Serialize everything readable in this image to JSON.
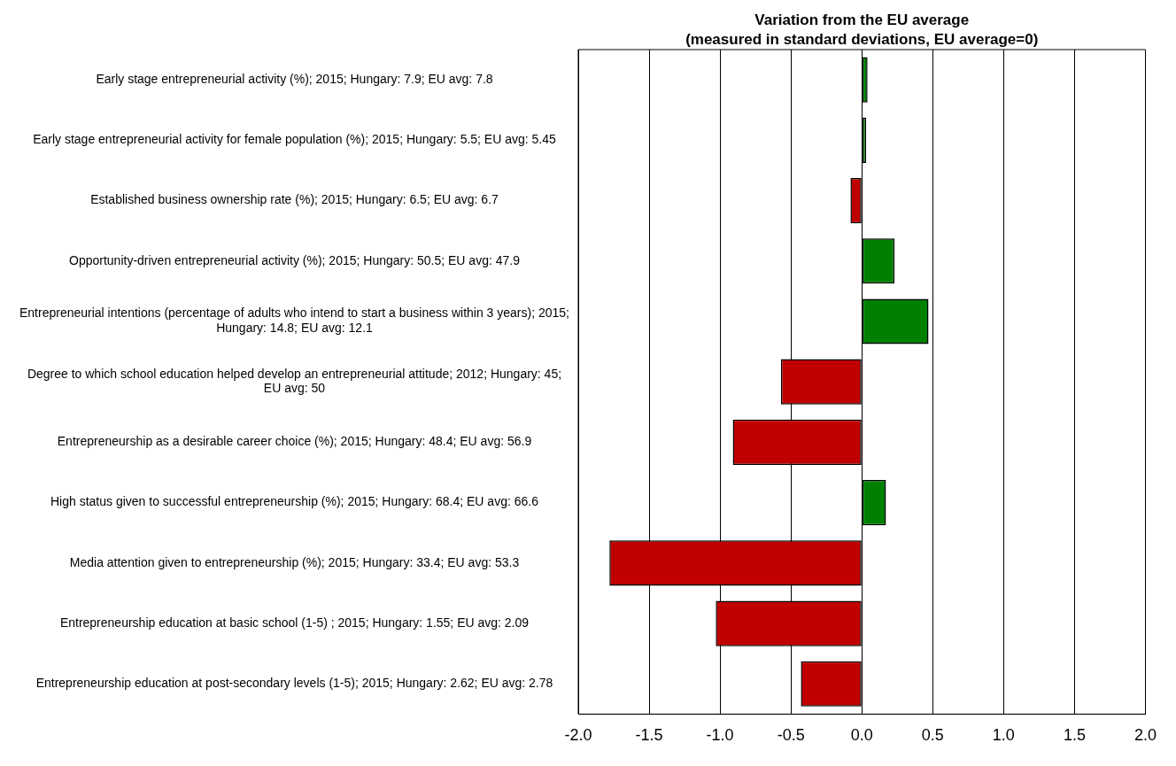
{
  "chart_data": {
    "type": "bar",
    "orientation": "horizontal",
    "title": "Variation from the EU average",
    "subtitle": "(measured in standard deviations, EU average=0)",
    "categories": [
      "Early stage entrepreneurial activity (%); 2015; Hungary: 7.9; EU avg: 7.8",
      "Early stage entrepreneurial activity for female population (%); 2015; Hungary: 5.5; EU avg: 5.45",
      "Established business ownership rate (%); 2015; Hungary: 6.5; EU avg: 6.7",
      "Opportunity-driven entrepreneurial activity (%); 2015; Hungary: 50.5; EU avg: 47.9",
      "Entrepreneurial intentions (percentage of adults who intend to start a business within 3 years); 2015; Hungary: 14.8; EU avg: 12.1",
      "Degree to which school education helped develop an entrepreneurial attitude; 2012; Hungary: 45; EU avg: 50",
      "Entrepreneurship as a desirable career choice (%); 2015; Hungary: 48.4; EU avg: 56.9",
      "High status given to successful entrepreneurship (%); 2015; Hungary: 68.4; EU avg: 66.6",
      "Media attention given to entrepreneurship (%); 2015; Hungary: 33.4; EU avg: 53.3",
      "Entrepreneurship education at basic school (1-5) ; 2015; Hungary: 1.55; EU avg: 2.09",
      "Entrepreneurship education at post-secondary levels (1-5); 2015; Hungary: 2.62; EU avg: 2.78"
    ],
    "values": [
      0.04,
      0.03,
      -0.08,
      0.23,
      0.47,
      -0.57,
      -0.91,
      0.17,
      -1.78,
      -1.03,
      -0.43
    ],
    "colors": [
      "#008000",
      "#008000",
      "#c00000",
      "#008000",
      "#008000",
      "#c00000",
      "#c00000",
      "#008000",
      "#c00000",
      "#c00000",
      "#c00000"
    ],
    "xlim": [
      -2,
      2
    ],
    "xticks": [
      {
        "value": -2,
        "label": "-2.0"
      },
      {
        "value": -1.5,
        "label": "-1.5"
      },
      {
        "value": -1,
        "label": "-1.0"
      },
      {
        "value": -0.5,
        "label": "-0.5"
      },
      {
        "value": 0,
        "label": "0.0"
      },
      {
        "value": 0.5,
        "label": "0.5"
      },
      {
        "value": 1,
        "label": "1.0"
      },
      {
        "value": 1.5,
        "label": "1.5"
      },
      {
        "value": 2,
        "label": "2.0"
      }
    ],
    "grid": "x"
  }
}
